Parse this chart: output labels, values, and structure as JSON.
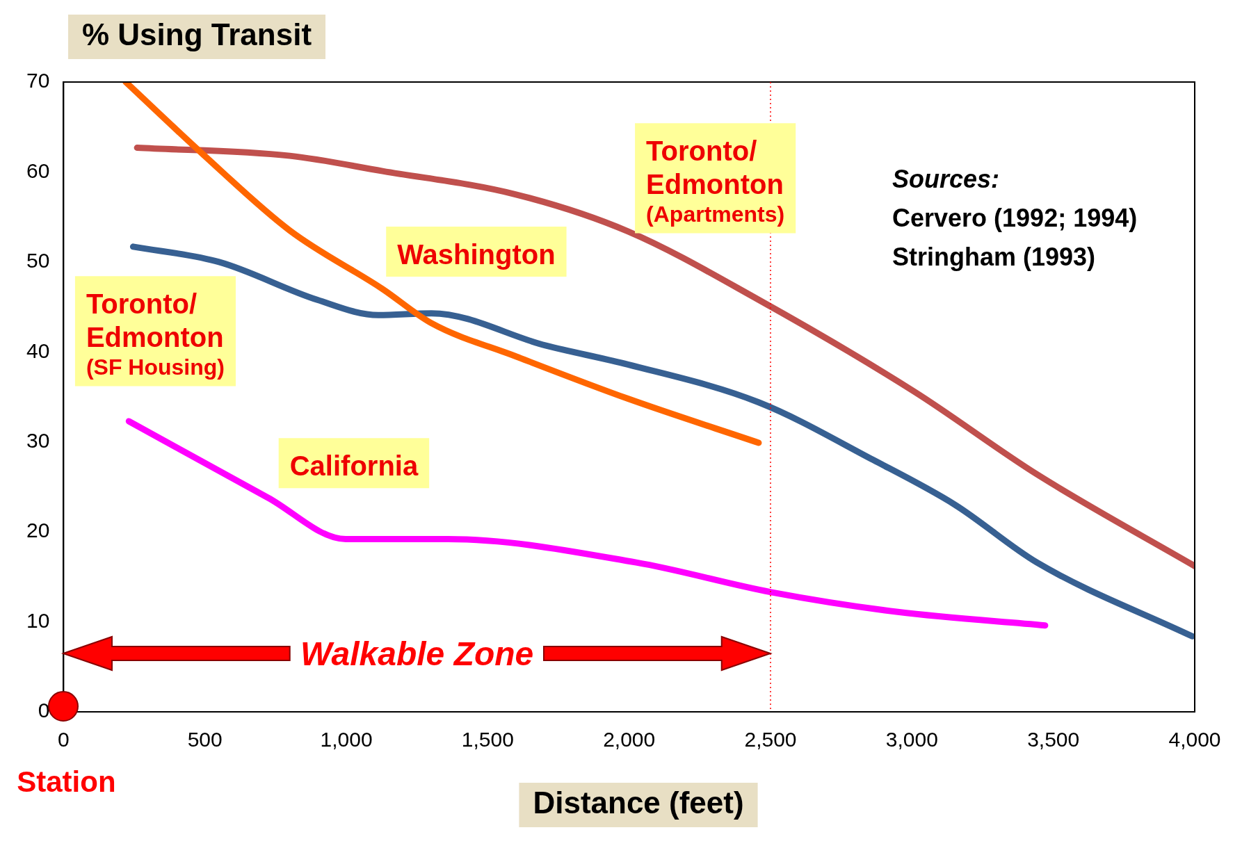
{
  "chart_data": {
    "type": "line",
    "ylabel": "% Using Transit",
    "xlabel": "Distance (feet)",
    "xlim": [
      0,
      4000
    ],
    "ylim": [
      0,
      70
    ],
    "xticks": [
      0,
      500,
      {
        "value": 1000,
        "label": "1,000"
      },
      {
        "value": 1500,
        "label": "1,500"
      },
      {
        "value": 2000,
        "label": "2,000"
      },
      {
        "value": 2500,
        "label": "2,500"
      },
      {
        "value": 3000,
        "label": "3,000"
      },
      {
        "value": 3500,
        "label": "3,500"
      },
      {
        "value": 4000,
        "label": "4,000"
      }
    ],
    "yticks": [
      0,
      10,
      20,
      30,
      40,
      50,
      60,
      70
    ],
    "grid": false,
    "legend": false,
    "marker": "none",
    "line_style": "solid",
    "series": [
      {
        "name": "Washington",
        "color": "#ff6600",
        "x": [
          220,
          492,
          800,
          1128,
          1301,
          1600,
          1996,
          2458
        ],
        "values": [
          70,
          62,
          53.5,
          47,
          43.2,
          39.5,
          34.8,
          29.9
        ]
      },
      {
        "name": "Toronto/\nEdmonton\n(Apartments)",
        "color": "#c0504d",
        "x": [
          260,
          800,
          1128,
          1600,
          1996,
          2458,
          3008,
          3442,
          4000
        ],
        "values": [
          62.7,
          61.8,
          60.1,
          57.5,
          53.4,
          45.8,
          35.6,
          26.4,
          16.2
        ]
      },
      {
        "name": "Toronto/\nEdmonton\n(SF Housing)",
        "color": "#376092",
        "x": [
          246,
          550,
          897,
          1113,
          1301,
          1706,
          1996,
          2458,
          2863,
          3153,
          3442,
          3991
        ],
        "values": [
          51.7,
          50,
          45.8,
          44.1,
          44.3,
          40.7,
          38.6,
          34.4,
          28,
          23,
          16.6,
          8.4
        ]
      },
      {
        "name": "California",
        "color": "#ff00ff",
        "x": [
          231,
          723,
          998,
          1360,
          2025,
          2502,
          2950,
          3471
        ],
        "values": [
          32.3,
          23.8,
          19.2,
          19.2,
          16.6,
          13.3,
          11.1,
          9.6
        ]
      }
    ],
    "ref_lines": [
      {
        "axis": "x",
        "value": 2500,
        "color": "#ff0000",
        "line_style": "dotted"
      }
    ],
    "annotations": [
      "Station",
      "Walkable Zone",
      "Sources:",
      "Cervero (1992; 1994)",
      "Stringham (1993)"
    ]
  }
}
